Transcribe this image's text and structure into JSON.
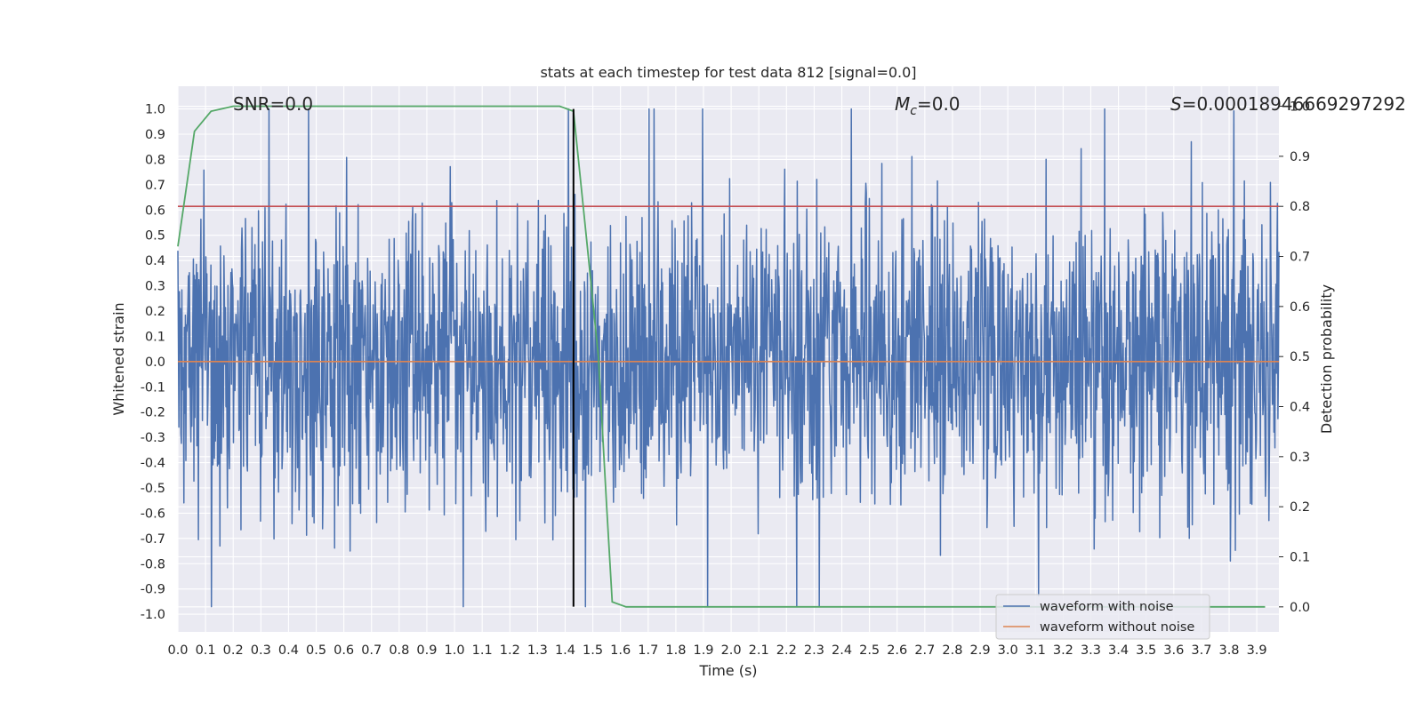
{
  "chart_data": {
    "type": "line",
    "title": "stats at each timestep for test data 812 [signal=0.0]",
    "xlabel": "Time (s)",
    "ylabel": "Whitened strain",
    "y2label": "Detection probability",
    "xlim": [
      0.0,
      3.98
    ],
    "ylim": [
      -1.07,
      1.09
    ],
    "y2lim": [
      -0.05,
      1.04
    ],
    "xticks": [
      "0.0",
      "0.1",
      "0.2",
      "0.3",
      "0.4",
      "0.5",
      "0.6",
      "0.7",
      "0.8",
      "0.9",
      "1.0",
      "1.1",
      "1.2",
      "1.3",
      "1.4",
      "1.5",
      "1.6",
      "1.7",
      "1.8",
      "1.9",
      "2.0",
      "2.1",
      "2.2",
      "2.3",
      "2.4",
      "2.5",
      "2.6",
      "2.7",
      "2.8",
      "2.9",
      "3.0",
      "3.1",
      "3.2",
      "3.3",
      "3.4",
      "3.5",
      "3.6",
      "3.7",
      "3.8",
      "3.9"
    ],
    "yticks": [
      "1.0",
      "0.9",
      "0.8",
      "0.7",
      "0.6",
      "0.5",
      "0.4",
      "0.3",
      "0.2",
      "0.1",
      "0.0",
      "-0.1",
      "-0.2",
      "-0.3",
      "-0.4",
      "-0.5",
      "-0.6",
      "-0.7",
      "-0.8",
      "-0.9",
      "-1.0"
    ],
    "y2ticks": [
      "1.0",
      "0.9",
      "0.8",
      "0.7",
      "0.6",
      "0.5",
      "0.4",
      "0.3",
      "0.2",
      "0.1",
      "0.0"
    ],
    "annotations": {
      "snr": "SNR=0.0",
      "mc_symbol": "M",
      "mc_sub": "c",
      "mc_value": "=0.0",
      "s_symbol": "S",
      "s_value": "=0.00018946669297292"
    },
    "threshold": {
      "value": 0.8,
      "axis": "y2"
    },
    "peak_marker": {
      "x": 1.43,
      "ymin": -0.97,
      "ymax": 1.0
    },
    "series": [
      {
        "name": "waveform with noise",
        "axis": "y",
        "color": "#4c72b0",
        "t_start": 0.0,
        "t_end": 3.98,
        "n_samples": 2200,
        "amplitude_envelope": [
          -0.97,
          1.0
        ],
        "typical_range": [
          -0.35,
          0.35
        ]
      },
      {
        "name": "waveform without noise",
        "axis": "y",
        "color": "#dd8452",
        "x": [
          0.0,
          3.98
        ],
        "values": [
          0.0,
          0.0
        ]
      },
      {
        "name": "detection probability",
        "axis": "y2",
        "color": "#55a868",
        "x": [
          0.0,
          0.06,
          0.12,
          0.2,
          0.3,
          0.5,
          0.8,
          1.0,
          1.2,
          1.38,
          1.43,
          1.48,
          1.52,
          1.55,
          1.57,
          1.62,
          1.7,
          1.9,
          3.93
        ],
        "values": [
          0.72,
          0.95,
          0.99,
          1.0,
          1.0,
          1.0,
          1.0,
          1.0,
          1.0,
          1.0,
          0.99,
          0.72,
          0.5,
          0.2,
          0.01,
          0.0,
          0.0,
          0.0,
          0.0
        ]
      }
    ],
    "legend": {
      "placement": "lower-right",
      "entries": [
        "waveform with noise",
        "waveform without noise"
      ]
    }
  }
}
